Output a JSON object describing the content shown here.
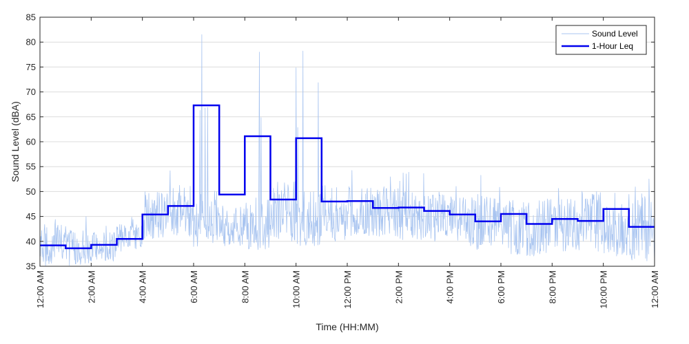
{
  "chart_data": {
    "type": "line",
    "title": "",
    "xlabel": "Time (HH:MM)",
    "ylabel": "Sound Level (dBA)",
    "ylim": [
      35,
      85
    ],
    "yticks": [
      35,
      40,
      45,
      50,
      55,
      60,
      65,
      70,
      75,
      80,
      85
    ],
    "xlim": [
      "00:00",
      "24:00"
    ],
    "xticks": [
      "12:00 AM",
      "2:00 AM",
      "4:00 AM",
      "6:00 AM",
      "8:00 AM",
      "10:00 AM",
      "12:00 PM",
      "2:00 PM",
      "4:00 PM",
      "6:00 PM",
      "8:00 PM",
      "10:00 PM",
      "12:00 AM"
    ],
    "grid": "horizontal",
    "legend": {
      "placement": "top-right",
      "entries": [
        "Sound Level",
        "1-Hour Leq"
      ]
    },
    "series": [
      {
        "name": "Sound Level",
        "color": "#a8c4f0",
        "points_per_hour_approx": 60,
        "hourly_typical_range": [
          [
            35,
            47
          ],
          [
            35,
            45
          ],
          [
            36,
            44
          ],
          [
            38,
            46
          ],
          [
            40,
            54
          ],
          [
            41,
            55
          ],
          [
            38,
            81.5
          ],
          [
            39,
            50
          ],
          [
            38,
            78
          ],
          [
            40,
            57
          ],
          [
            39,
            78.2
          ],
          [
            40,
            52
          ],
          [
            41,
            55
          ],
          [
            41,
            55
          ],
          [
            40,
            54
          ],
          [
            40,
            53
          ],
          [
            39,
            53
          ],
          [
            38,
            54
          ],
          [
            37,
            53
          ],
          [
            37,
            53
          ],
          [
            38,
            53
          ],
          [
            38,
            55
          ],
          [
            37,
            51
          ],
          [
            36,
            55
          ]
        ]
      },
      {
        "name": "1-Hour Leq",
        "color": "#0000ee",
        "hours": [
          "00:00",
          "01:00",
          "02:00",
          "03:00",
          "04:00",
          "05:00",
          "06:00",
          "07:00",
          "08:00",
          "09:00",
          "10:00",
          "11:00",
          "12:00",
          "13:00",
          "14:00",
          "15:00",
          "16:00",
          "17:00",
          "18:00",
          "19:00",
          "20:00",
          "21:00",
          "22:00",
          "23:00"
        ],
        "values": [
          39.2,
          38.6,
          39.3,
          40.5,
          45.4,
          47.1,
          67.3,
          49.4,
          61.1,
          48.4,
          60.7,
          48.0,
          48.1,
          46.7,
          46.8,
          46.1,
          45.4,
          44.0,
          45.5,
          43.5,
          44.5,
          44.1,
          46.5,
          42.9
        ]
      }
    ]
  }
}
